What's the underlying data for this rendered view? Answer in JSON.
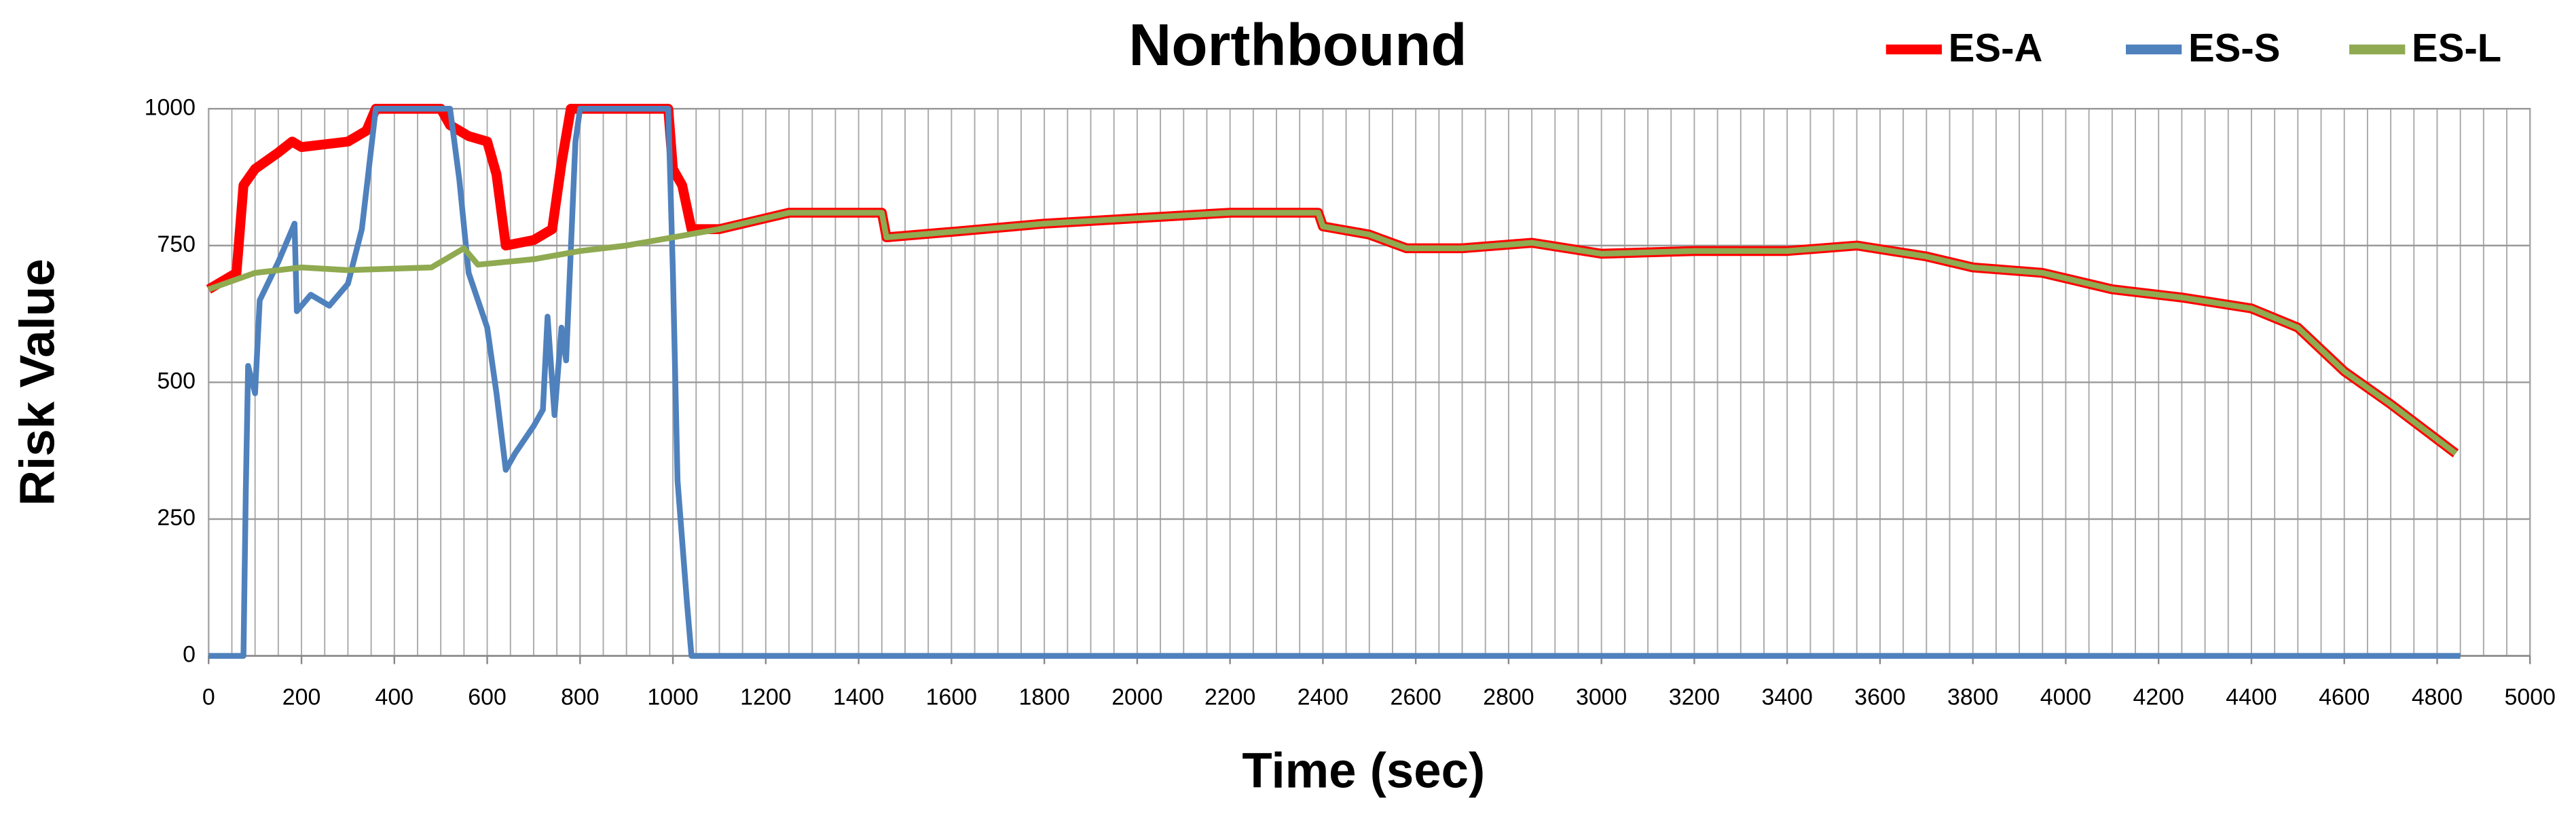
{
  "chart_data": {
    "type": "line",
    "title": "Northbound",
    "xlabel": "Time (sec)",
    "ylabel": "Risk Value",
    "xlim": [
      0,
      5000
    ],
    "xticks": [
      0,
      200,
      400,
      600,
      800,
      1000,
      1200,
      1400,
      1600,
      1800,
      2000,
      2200,
      2400,
      2600,
      2800,
      3000,
      3200,
      3400,
      3600,
      3800,
      4000,
      4200,
      4400,
      4600,
      4800,
      5000
    ],
    "ylim": [
      0,
      1000
    ],
    "yticks": [
      0,
      250,
      500,
      750,
      1000
    ],
    "grid": true,
    "x_minor_grid_step": 50,
    "legend": "top-right",
    "series": [
      {
        "name": "ES-A",
        "color": "#ff0000",
        "x": [
          0,
          60,
          75,
          100,
          150,
          180,
          200,
          250,
          300,
          340,
          360,
          500,
          520,
          560,
          600,
          620,
          640,
          700,
          740,
          760,
          780,
          990,
          1000,
          1020,
          1040,
          1100,
          1200,
          1250,
          1450,
          1460,
          1600,
          1800,
          2000,
          2200,
          2390,
          2400,
          2500,
          2580,
          2700,
          2850,
          3000,
          3200,
          3400,
          3550,
          3700,
          3800,
          3950,
          4100,
          4250,
          4400,
          4500,
          4600,
          4700,
          4840
        ],
        "values": [
          670,
          700,
          860,
          890,
          920,
          940,
          930,
          935,
          940,
          960,
          1000,
          1000,
          970,
          950,
          940,
          880,
          750,
          760,
          780,
          900,
          1000,
          1000,
          890,
          860,
          780,
          780,
          800,
          810,
          810,
          765,
          775,
          790,
          800,
          810,
          810,
          785,
          770,
          745,
          745,
          755,
          735,
          740,
          740,
          750,
          730,
          710,
          700,
          670,
          655,
          635,
          600,
          520,
          460,
          370
        ]
      },
      {
        "name": "ES-S",
        "color": "#4f81bd",
        "x": [
          0,
          75,
          80,
          85,
          100,
          110,
          150,
          185,
          190,
          220,
          260,
          300,
          330,
          360,
          520,
          540,
          560,
          580,
          600,
          620,
          640,
          660,
          700,
          720,
          730,
          745,
          760,
          770,
          790,
          800,
          990,
          1000,
          1010,
          1030,
          1040,
          4850
        ],
        "values": [
          0,
          0,
          300,
          530,
          480,
          650,
          720,
          790,
          630,
          660,
          640,
          680,
          780,
          1000,
          1000,
          870,
          700,
          650,
          600,
          480,
          340,
          370,
          420,
          450,
          620,
          440,
          600,
          540,
          940,
          1000,
          1000,
          700,
          320,
          100,
          0,
          0
        ]
      },
      {
        "name": "ES-L",
        "color": "#8faa50",
        "x": [
          0,
          100,
          200,
          300,
          480,
          520,
          550,
          580,
          700,
          800,
          900,
          1000,
          1100,
          1200,
          1250,
          1450,
          1460,
          1600,
          1800,
          2000,
          2200,
          2390,
          2400,
          2500,
          2580,
          2700,
          2850,
          3000,
          3200,
          3400,
          3550,
          3700,
          3800,
          3950,
          4100,
          4250,
          4400,
          4500,
          4600,
          4700,
          4840
        ],
        "values": [
          670,
          700,
          710,
          705,
          710,
          730,
          745,
          715,
          725,
          740,
          750,
          765,
          780,
          800,
          810,
          810,
          765,
          775,
          790,
          800,
          810,
          810,
          785,
          770,
          745,
          745,
          755,
          735,
          740,
          740,
          750,
          730,
          710,
          700,
          670,
          655,
          635,
          600,
          520,
          460,
          370
        ]
      }
    ]
  }
}
